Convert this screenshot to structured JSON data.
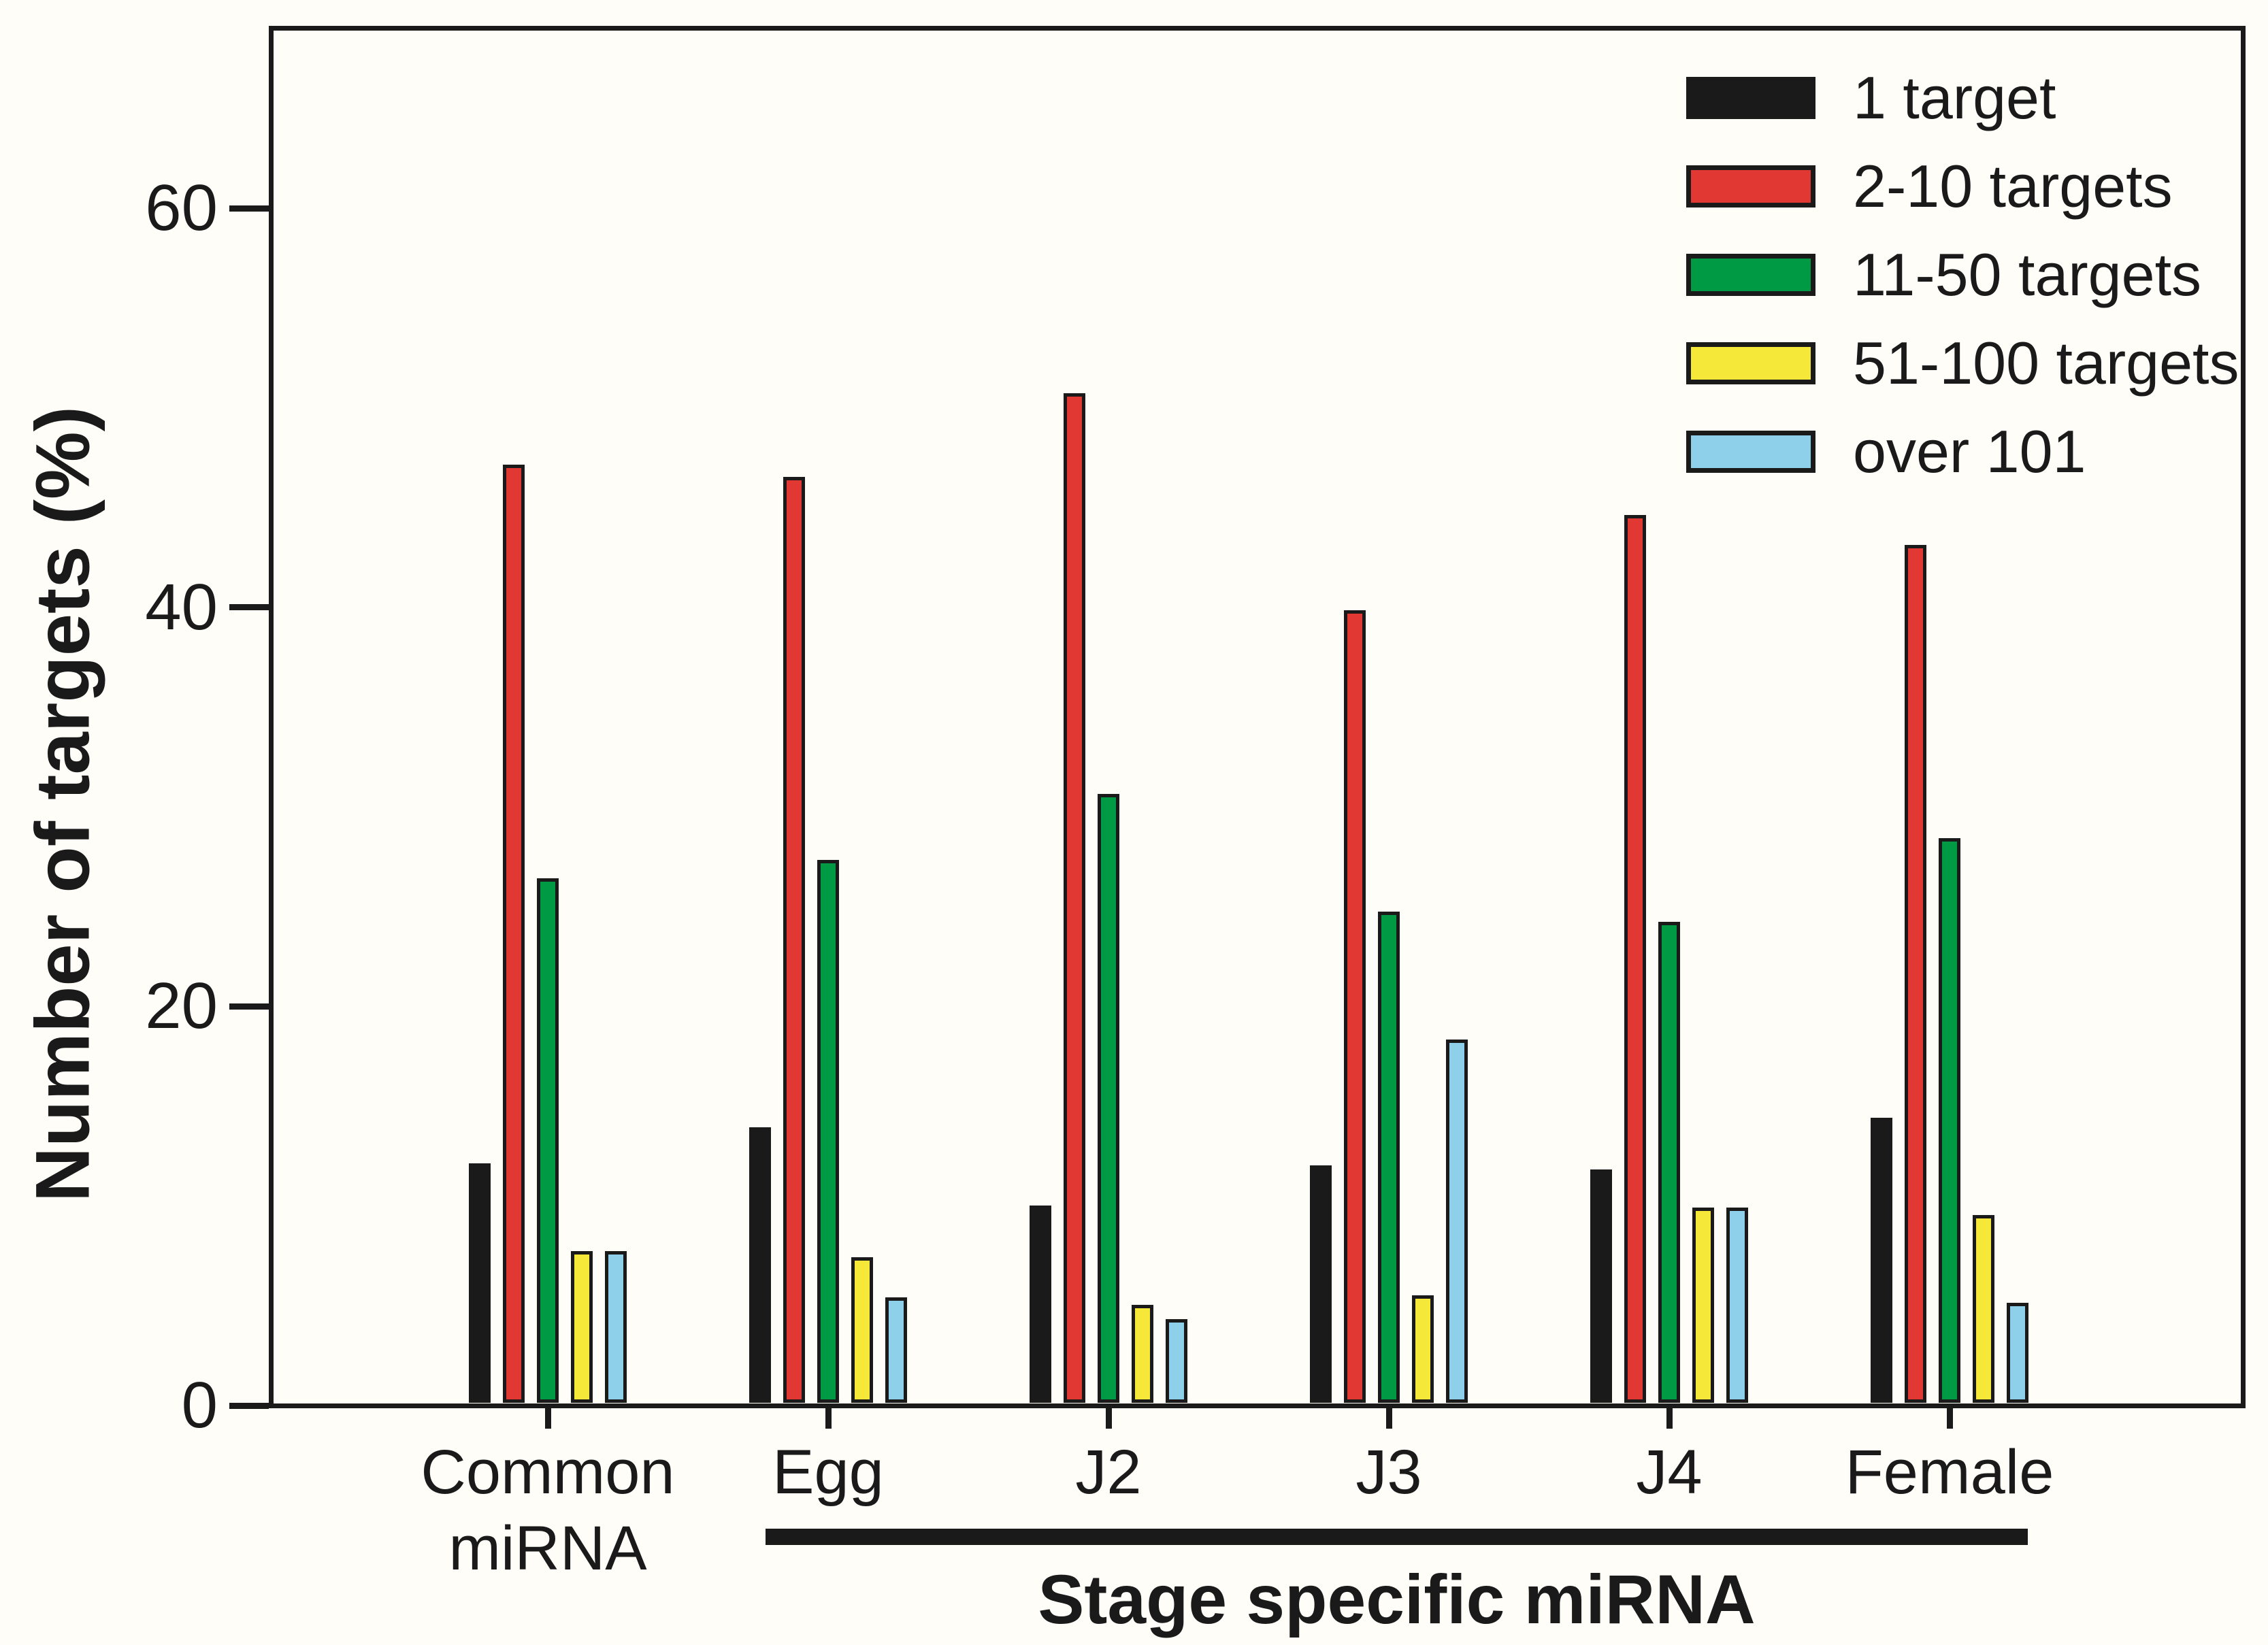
{
  "figure": {
    "background_color": "#fffdf8",
    "frame_color": "#1a1a1a"
  },
  "chart_data": {
    "type": "bar",
    "title": "",
    "xlabel": "",
    "ylabel": "Number of targets (%)",
    "group_axis_label": "Stage specific miRNA",
    "categories": [
      "Common\nmiRNA",
      "Egg",
      "J2",
      "J3",
      "J4",
      "Female"
    ],
    "stage_specific_categories": [
      "Egg",
      "J2",
      "J3",
      "J4",
      "Female"
    ],
    "y_ticks": [
      0,
      20,
      40,
      60
    ],
    "ylim": [
      0,
      69
    ],
    "grid": false,
    "legend_position": "top-right",
    "series": [
      {
        "name": "1 target",
        "color": "#1a1a1a",
        "values": [
          12.0,
          13.8,
          9.9,
          11.9,
          11.7,
          14.3
        ]
      },
      {
        "name": "2-10 targets",
        "color": "#e23833",
        "values": [
          47.0,
          46.4,
          50.6,
          39.7,
          44.5,
          43.0
        ]
      },
      {
        "name": "11-50 targets",
        "color": "#009a44",
        "values": [
          26.3,
          27.2,
          30.5,
          24.6,
          24.1,
          28.3
        ]
      },
      {
        "name": "51-100 targets",
        "color": "#f6e838",
        "values": [
          7.6,
          7.3,
          4.9,
          5.4,
          9.8,
          9.4
        ]
      },
      {
        "name": "over 101",
        "color": "#8ecfe9",
        "values": [
          7.6,
          5.3,
          4.2,
          18.2,
          9.8,
          5.0
        ]
      }
    ]
  }
}
